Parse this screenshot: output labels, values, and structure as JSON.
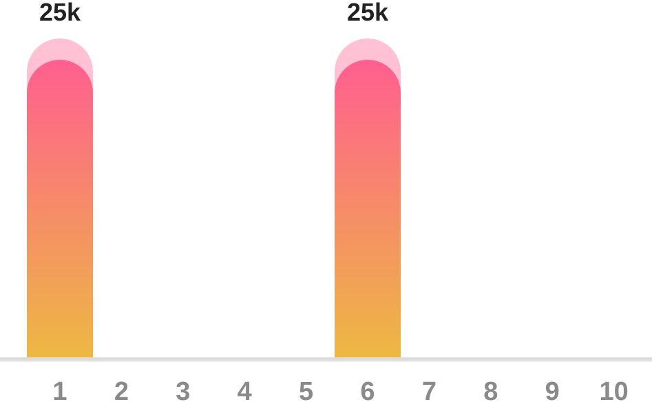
{
  "chart_data": {
    "type": "bar",
    "title": "",
    "xlabel": "",
    "ylabel": "",
    "categories": [
      "1",
      "2",
      "3",
      "4",
      "5",
      "6",
      "7",
      "8",
      "9",
      "10"
    ],
    "values": [
      25000,
      0,
      0,
      0,
      0,
      25000,
      0,
      0,
      0,
      0
    ],
    "data_labels": [
      "25k",
      "",
      "",
      "",
      "",
      "25k",
      "",
      "",
      "",
      ""
    ],
    "ylim": [
      0,
      25000
    ],
    "grid": false,
    "legend": "none",
    "colors": {
      "bar_top": "#ff5f8f",
      "bar_bottom": "#edb842",
      "bar_highlight": "#ffc1d3",
      "baseline": "#dddddd",
      "tick_label": "#8a8a8a",
      "value_label": "#222222"
    }
  }
}
